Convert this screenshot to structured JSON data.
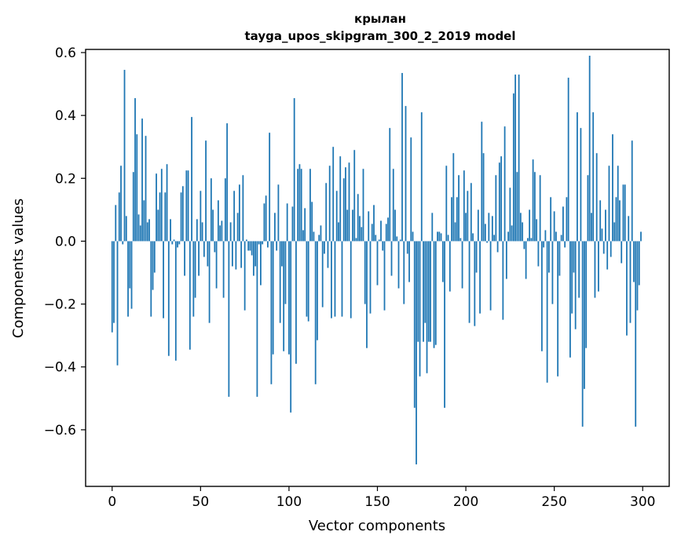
{
  "chart_data": {
    "type": "bar",
    "title_lines": [
      "крылан",
      "tayga_upos_skipgram_300_2_2019 model"
    ],
    "xlabel": "Vector components",
    "ylabel": "Components values",
    "xlim": [
      -15,
      315
    ],
    "ylim": [
      -0.78,
      0.61
    ],
    "xticks": [
      0,
      50,
      100,
      150,
      200,
      250,
      300
    ],
    "yticks": [
      -0.6,
      -0.4,
      -0.2,
      0.0,
      0.2,
      0.4,
      0.6
    ],
    "xtick_labels": [
      "0",
      "50",
      "100",
      "150",
      "200",
      "250",
      "300"
    ],
    "ytick_labels": [
      "−0.6",
      "−0.4",
      "−0.2",
      "0.0",
      "0.2",
      "0.4",
      "0.6"
    ],
    "grid": false,
    "bar_color": "#1f77b4",
    "values": [
      -0.29,
      -0.26,
      0.115,
      -0.395,
      0.155,
      0.24,
      -0.01,
      0.545,
      0.08,
      -0.24,
      -0.15,
      -0.215,
      0.22,
      0.455,
      0.34,
      0.085,
      0.05,
      0.39,
      0.13,
      0.335,
      0.06,
      0.07,
      -0.24,
      -0.155,
      -0.1,
      0.215,
      0.1,
      0.155,
      0.23,
      -0.245,
      0.155,
      0.245,
      -0.365,
      0.07,
      -0.01,
      0.005,
      -0.38,
      -0.02,
      -0.01,
      0.155,
      0.175,
      -0.11,
      0.225,
      0.225,
      -0.345,
      0.395,
      -0.24,
      -0.18,
      0.07,
      -0.11,
      0.16,
      0.06,
      -0.05,
      0.32,
      -0.08,
      -0.26,
      0.2,
      0.1,
      -0.035,
      -0.15,
      0.13,
      0.05,
      0.065,
      -0.18,
      0.2,
      0.375,
      -0.495,
      0.06,
      -0.08,
      0.16,
      -0.09,
      0.09,
      0.18,
      -0.085,
      0.21,
      -0.22,
      0.005,
      -0.03,
      -0.03,
      -0.045,
      -0.11,
      -0.08,
      -0.495,
      -0.01,
      -0.14,
      -0.01,
      0.12,
      0.145,
      -0.02,
      0.345,
      -0.455,
      -0.36,
      0.09,
      -0.03,
      0.18,
      -0.26,
      -0.08,
      -0.35,
      -0.2,
      0.12,
      -0.36,
      -0.545,
      0.11,
      0.455,
      -0.39,
      0.23,
      0.245,
      0.23,
      0.035,
      0.105,
      -0.24,
      -0.255,
      0.23,
      0.125,
      0.03,
      -0.455,
      -0.315,
      0.02,
      0.05,
      -0.21,
      -0.04,
      0.185,
      -0.085,
      0.24,
      -0.245,
      0.3,
      -0.24,
      0.16,
      0.06,
      0.27,
      -0.24,
      0.2,
      0.235,
      0.1,
      0.25,
      -0.245,
      0.1,
      0.29,
      0.01,
      0.15,
      0.08,
      0.045,
      0.23,
      -0.2,
      -0.34,
      0.095,
      -0.23,
      0.055,
      0.115,
      0.02,
      -0.14,
      0.005,
      0.065,
      -0.03,
      -0.22,
      0.055,
      0.075,
      0.36,
      -0.11,
      0.23,
      0.1,
      0.015,
      -0.15,
      0.005,
      0.535,
      -0.2,
      0.43,
      -0.04,
      -0.13,
      0.33,
      0.03,
      -0.53,
      -0.71,
      -0.32,
      -0.43,
      0.41,
      -0.32,
      -0.26,
      -0.42,
      -0.32,
      -0.32,
      0.09,
      -0.34,
      -0.33,
      0.03,
      0.03,
      0.025,
      -0.13,
      -0.53,
      0.24,
      0.02,
      -0.16,
      0.14,
      0.28,
      0.06,
      0.14,
      0.21,
      0.01,
      -0.15,
      0.225,
      0.09,
      0.16,
      -0.26,
      0.185,
      0.025,
      -0.27,
      -0.1,
      0.1,
      -0.23,
      0.38,
      0.28,
      0.055,
      -0.005,
      0.09,
      -0.22,
      0.08,
      0.02,
      0.21,
      -0.035,
      0.25,
      0.27,
      -0.25,
      0.365,
      -0.12,
      0.03,
      0.17,
      0.05,
      0.47,
      0.53,
      0.22,
      0.53,
      0.09,
      0.06,
      -0.025,
      -0.12,
      0.01,
      0.1,
      0.01,
      0.26,
      0.22,
      0.07,
      -0.08,
      0.21,
      -0.35,
      -0.02,
      0.035,
      -0.45,
      -0.1,
      0.14,
      -0.2,
      0.095,
      0.03,
      -0.43,
      -0.11,
      0.02,
      0.11,
      -0.02,
      0.14,
      0.52,
      -0.37,
      -0.23,
      -0.1,
      -0.28,
      0.41,
      -0.18,
      0.36,
      -0.59,
      -0.47,
      -0.34,
      0.21,
      0.59,
      0.09,
      0.41,
      -0.18,
      0.28,
      -0.16,
      0.13,
      0.04,
      -0.04,
      0.1,
      -0.09,
      0.24,
      -0.05,
      0.34,
      0.06,
      0.14,
      0.24,
      0.13,
      -0.07,
      0.18,
      0.18,
      -0.3,
      0.08,
      -0.26,
      0.32,
      -0.13,
      -0.59,
      -0.22,
      -0.14,
      0.03
    ]
  }
}
